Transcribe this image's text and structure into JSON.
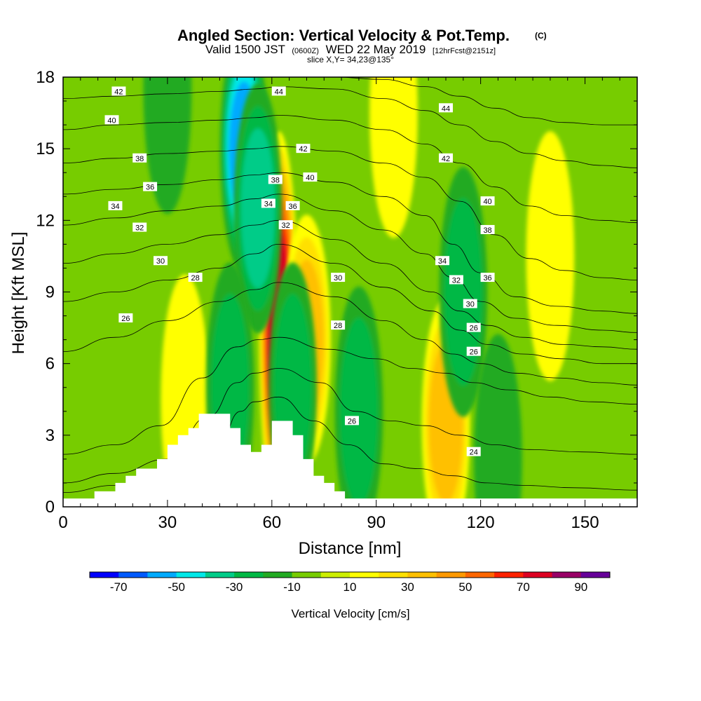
{
  "chart_data": {
    "type": "heatmap",
    "title": "Angled Section: Vertical Velocity & Pot.Temp.",
    "title_suffix": "(C)",
    "subtitle_parts": {
      "valid": "Valid 1500 JST",
      "utc": "(0600Z)",
      "date": "WED 22 May 2019",
      "forecast": "[12hrFcst@2151z]"
    },
    "slice_label": "slice X,Y= 34,23@135°",
    "xlabel": "Distance [nm]",
    "ylabel": "Height [Kft MSL]",
    "xlim": [
      0,
      165
    ],
    "ylim": [
      0,
      18
    ],
    "x_ticks": [
      "0",
      "30",
      "60",
      "90",
      "120",
      "150"
    ],
    "y_ticks": [
      "0",
      "3",
      "6",
      "9",
      "12",
      "15",
      "18"
    ],
    "colorbar": {
      "label": "Vertical Velocity [cm/s]",
      "tick_labels": [
        "-70",
        "-50",
        "-30",
        "-10",
        "10",
        "30",
        "50",
        "70",
        "90"
      ],
      "bins": [
        -80,
        -70,
        -60,
        -50,
        -40,
        -30,
        -20,
        -10,
        0,
        10,
        20,
        30,
        40,
        50,
        60,
        70,
        80,
        90,
        100
      ],
      "colors": [
        "#0000ff",
        "#005aff",
        "#00aaff",
        "#00e8e8",
        "#00cc88",
        "#00b844",
        "#22aa22",
        "#77cc00",
        "#ccee00",
        "#ffff00",
        "#ffe000",
        "#ffc000",
        "#ff9900",
        "#ff6600",
        "#ff2200",
        "#dd0022",
        "#990066",
        "#660099"
      ]
    },
    "vertical_velocity_features": [
      {
        "x": 62,
        "y": 7.5,
        "peak": 70
      },
      {
        "x": 70,
        "y": 7,
        "peak": 35
      },
      {
        "x": 110,
        "y": 3.5,
        "peak": 30
      },
      {
        "x": 35,
        "y": 4.5,
        "peak": 15
      },
      {
        "x": 95,
        "y": 16.5,
        "peak": 15
      },
      {
        "x": 140,
        "y": 10.5,
        "peak": 15
      },
      {
        "x": 52,
        "y": 15,
        "peak": -50
      },
      {
        "x": 56,
        "y": 12.5,
        "peak": -30
      },
      {
        "x": 48,
        "y": 5,
        "peak": -25
      },
      {
        "x": 66,
        "y": 5,
        "peak": -20
      },
      {
        "x": 115,
        "y": 9,
        "peak": -25
      },
      {
        "x": 85,
        "y": 4,
        "peak": -20
      },
      {
        "x": 30,
        "y": 17.5,
        "peak": -15
      },
      {
        "x": 125,
        "y": 2,
        "peak": -10
      }
    ],
    "terrain": [
      [
        0,
        0.35
      ],
      [
        9,
        0.35
      ],
      [
        9,
        0.65
      ],
      [
        15,
        0.65
      ],
      [
        15,
        1
      ],
      [
        18,
        1
      ],
      [
        18,
        1.3
      ],
      [
        21,
        1.3
      ],
      [
        21,
        1.6
      ],
      [
        27,
        1.6
      ],
      [
        27,
        2
      ],
      [
        30,
        2
      ],
      [
        30,
        2.6
      ],
      [
        33,
        2.6
      ],
      [
        33,
        3
      ],
      [
        36,
        3
      ],
      [
        36,
        3.3
      ],
      [
        39,
        3.3
      ],
      [
        39,
        3.9
      ],
      [
        48,
        3.9
      ],
      [
        48,
        3.3
      ],
      [
        51,
        3.3
      ],
      [
        51,
        2.6
      ],
      [
        54,
        2.6
      ],
      [
        54,
        2.3
      ],
      [
        57,
        2.3
      ],
      [
        57,
        2.6
      ],
      [
        60,
        2.6
      ],
      [
        60,
        3.6
      ],
      [
        66,
        3.6
      ],
      [
        66,
        3
      ],
      [
        69,
        3
      ],
      [
        69,
        2
      ],
      [
        72,
        2
      ],
      [
        72,
        1.3
      ],
      [
        75,
        1.3
      ],
      [
        75,
        1
      ],
      [
        78,
        1
      ],
      [
        78,
        0.65
      ],
      [
        81,
        0.65
      ],
      [
        81,
        0.35
      ],
      [
        165,
        0.35
      ]
    ],
    "pot_temp_contours": [
      {
        "x": [
          0,
          15,
          30,
          44,
          51,
          55,
          62,
          72,
          82,
          92,
          102,
          112,
          122,
          132,
          147,
          165
        ],
        "y": [
          0.6,
          0.9,
          1.3,
          2.3,
          4.0,
          4.4,
          4.6,
          3.6,
          2.6,
          1.8,
          1.6,
          1.3,
          1.0,
          0.9,
          0.8,
          0.7
        ]
      },
      {
        "x": [
          0,
          15,
          30,
          42,
          50,
          55,
          62,
          74,
          84,
          94,
          104,
          114,
          124,
          134,
          149,
          165
        ],
        "y": [
          1.0,
          1.4,
          2.0,
          3.8,
          5.2,
          5.6,
          5.8,
          5.2,
          4.0,
          3.6,
          3.4,
          3.0,
          2.6,
          2.4,
          2.3,
          2.2
        ]
      },
      {
        "x": [
          0,
          15,
          28,
          40,
          50,
          56,
          62,
          76,
          90,
          100,
          110,
          118,
          128,
          140,
          152,
          165
        ],
        "y": [
          2.2,
          2.6,
          3.4,
          5.4,
          6.7,
          7.0,
          7.1,
          6.6,
          6.2,
          5.8,
          5.6,
          5.2,
          4.9,
          4.6,
          4.4,
          4.3
        ]
      },
      {
        "x": [
          0,
          15,
          30,
          45,
          55,
          62,
          78,
          92,
          104,
          112,
          120,
          130,
          142,
          155,
          165
        ],
        "y": [
          6.5,
          7.1,
          7.8,
          8.6,
          9.1,
          9.4,
          8.8,
          7.8,
          7.0,
          6.4,
          6.0,
          5.6,
          5.4,
          5.2,
          5.1
        ]
      },
      {
        "x": [
          0,
          15,
          30,
          45,
          55,
          62,
          78,
          92,
          106,
          114,
          122,
          132,
          144,
          155,
          165
        ],
        "y": [
          8.6,
          9.0,
          9.5,
          10.0,
          10.6,
          11.0,
          10.2,
          9.2,
          8.2,
          7.4,
          6.8,
          6.4,
          6.2,
          6.0,
          6.0
        ]
      },
      {
        "x": [
          0,
          15,
          30,
          45,
          55,
          62,
          78,
          92,
          106,
          114,
          122,
          132,
          144,
          155,
          165
        ],
        "y": [
          10.2,
          10.6,
          11.0,
          11.4,
          11.8,
          12.0,
          11.2,
          10.2,
          9.0,
          8.2,
          7.6,
          7.1,
          6.8,
          6.7,
          6.6
        ]
      },
      {
        "x": [
          0,
          15,
          30,
          45,
          55,
          62,
          78,
          92,
          104,
          112,
          120,
          130,
          142,
          155,
          165
        ],
        "y": [
          11.8,
          12.1,
          12.4,
          12.6,
          12.9,
          13.1,
          12.4,
          11.6,
          10.6,
          9.6,
          8.6,
          7.9,
          7.6,
          7.4,
          7.3
        ]
      },
      {
        "x": [
          0,
          15,
          30,
          45,
          55,
          62,
          78,
          92,
          104,
          112,
          120,
          130,
          142,
          155,
          165
        ],
        "y": [
          13.1,
          13.3,
          13.5,
          13.7,
          13.9,
          14.0,
          13.6,
          13.0,
          12.2,
          11.0,
          9.8,
          8.8,
          8.4,
          8.2,
          8.1
        ]
      },
      {
        "x": [
          0,
          15,
          30,
          45,
          55,
          62,
          78,
          92,
          104,
          114,
          124,
          134,
          144,
          155,
          165
        ],
        "y": [
          14.4,
          14.6,
          14.8,
          14.9,
          15.0,
          15.1,
          14.9,
          14.4,
          13.8,
          12.8,
          11.4,
          10.4,
          9.9,
          9.6,
          9.5
        ]
      },
      {
        "x": [
          0,
          15,
          30,
          45,
          55,
          62,
          78,
          92,
          104,
          114,
          124,
          134,
          144,
          155,
          165
        ],
        "y": [
          15.8,
          16.0,
          16.1,
          16.2,
          16.3,
          16.4,
          16.2,
          15.8,
          15.2,
          14.4,
          13.4,
          12.6,
          12.2,
          12.0,
          11.9
        ]
      },
      {
        "x": [
          0,
          15,
          30,
          45,
          55,
          62,
          78,
          92,
          104,
          114,
          124,
          134,
          144,
          155,
          165
        ],
        "y": [
          17.1,
          17.2,
          17.3,
          17.4,
          17.5,
          17.6,
          17.5,
          17.1,
          16.6,
          16.0,
          15.3,
          14.8,
          14.5,
          14.3,
          14.2
        ]
      },
      {
        "x": [
          0,
          20,
          40,
          55,
          62,
          78,
          92,
          104,
          114,
          124,
          134,
          144,
          155,
          165
        ],
        "y": [
          18.0,
          18.0,
          18.0,
          18.0,
          18.0,
          18.0,
          17.9,
          17.6,
          17.2,
          16.7,
          16.3,
          16.1,
          16.0,
          16.0
        ]
      }
    ],
    "contour_labels": [
      {
        "text": "42",
        "x": 16,
        "y": 17.4
      },
      {
        "text": "44",
        "x": 62,
        "y": 17.4
      },
      {
        "text": "44",
        "x": 110,
        "y": 16.7
      },
      {
        "text": "40",
        "x": 14,
        "y": 16.2
      },
      {
        "text": "42",
        "x": 69,
        "y": 15.0
      },
      {
        "text": "42",
        "x": 110,
        "y": 14.6
      },
      {
        "text": "38",
        "x": 22,
        "y": 14.6
      },
      {
        "text": "40",
        "x": 71,
        "y": 13.8
      },
      {
        "text": "36",
        "x": 25,
        "y": 13.4
      },
      {
        "text": "38",
        "x": 61,
        "y": 13.7
      },
      {
        "text": "34",
        "x": 15,
        "y": 12.6
      },
      {
        "text": "34",
        "x": 59,
        "y": 12.7
      },
      {
        "text": "36",
        "x": 66,
        "y": 12.6
      },
      {
        "text": "40",
        "x": 122,
        "y": 12.8
      },
      {
        "text": "32",
        "x": 22,
        "y": 11.7
      },
      {
        "text": "32",
        "x": 64,
        "y": 11.8
      },
      {
        "text": "38",
        "x": 122,
        "y": 11.6
      },
      {
        "text": "30",
        "x": 28,
        "y": 10.3
      },
      {
        "text": "34",
        "x": 109,
        "y": 10.3
      },
      {
        "text": "28",
        "x": 38,
        "y": 9.6
      },
      {
        "text": "30",
        "x": 79,
        "y": 9.6
      },
      {
        "text": "36",
        "x": 122,
        "y": 9.6
      },
      {
        "text": "32",
        "x": 113,
        "y": 9.5
      },
      {
        "text": "30",
        "x": 117,
        "y": 8.5
      },
      {
        "text": "26",
        "x": 18,
        "y": 7.9
      },
      {
        "text": "28",
        "x": 79,
        "y": 7.6
      },
      {
        "text": "26",
        "x": 118,
        "y": 7.5
      },
      {
        "text": "26",
        "x": 118,
        "y": 6.5
      },
      {
        "text": "26",
        "x": 83,
        "y": 3.6
      },
      {
        "text": "24",
        "x": 118,
        "y": 2.3
      }
    ]
  }
}
